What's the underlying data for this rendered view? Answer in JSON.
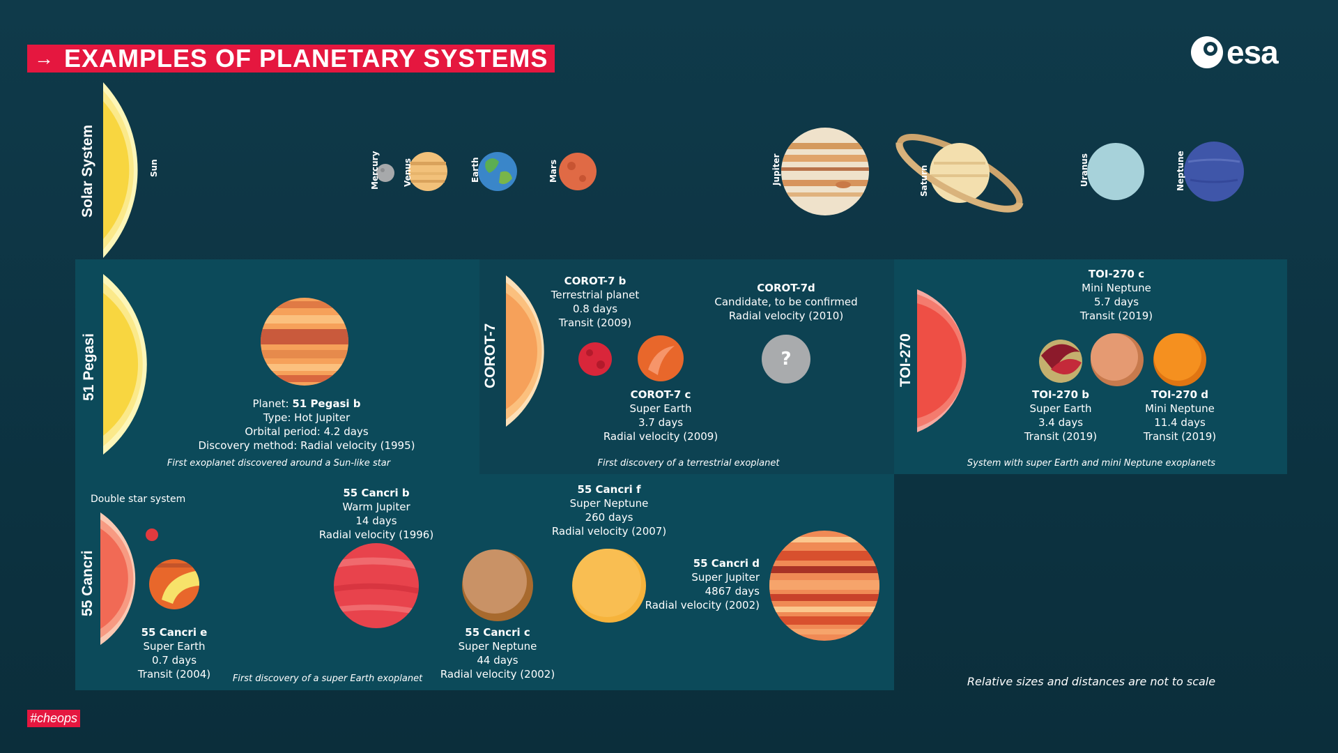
{
  "header": {
    "title": "EXAMPLES OF PLANETARY SYSTEMS",
    "arrow": "→"
  },
  "logo": {
    "text": "esa"
  },
  "solar": {
    "title": "Solar System",
    "labels": {
      "sun": "Sun",
      "mercury": "Mercury",
      "venus": "Venus",
      "earth": "Earth",
      "mars": "Mars",
      "jupiter": "Jupiter",
      "saturn": "Saturn",
      "uranus": "Uranus",
      "neptune": "Neptune"
    }
  },
  "pegasi": {
    "title": "51 Pegasi",
    "planet_label": "Planet: ",
    "planet_name": "51 Pegasi b",
    "type": "Type: Hot Jupiter",
    "period": "Orbital period: 4.2 days",
    "method": "Discovery method: Radial velocity (1995)",
    "caption": "First exoplanet discovered around a Sun-like star"
  },
  "corot": {
    "title": "COROT-7",
    "b": {
      "name": "COROT-7 b",
      "type": "Terrestrial planet",
      "period": "0.8 days",
      "method": "Transit (2009)"
    },
    "c": {
      "name": "COROT-7 c",
      "type": "Super Earth",
      "period": "3.7 days",
      "method": "Radial velocity (2009)"
    },
    "d": {
      "name": "COROT-7d",
      "type": "Candidate, to be confirmed",
      "method": "Radial velocity (2010)",
      "mark": "?"
    },
    "caption": "First discovery of a terrestrial exoplanet"
  },
  "toi": {
    "title": "TOI-270",
    "c": {
      "name": "TOI-270 c",
      "type": "Mini Neptune",
      "period": "5.7 days",
      "method": "Transit (2019)"
    },
    "b": {
      "name": "TOI-270 b",
      "type": "Super Earth",
      "period": "3.4 days",
      "method": "Transit (2019)"
    },
    "d": {
      "name": "TOI-270 d",
      "type": "Mini Neptune",
      "period": "11.4 days",
      "method": "Transit (2019)"
    },
    "caption": "System with super Earth and mini Neptune exoplanets"
  },
  "cancri": {
    "title": "55 Cancri",
    "double": "Double star system",
    "e": {
      "name": "55 Cancri e",
      "type": "Super Earth",
      "period": "0.7 days",
      "method": "Transit (2004)"
    },
    "b": {
      "name": "55 Cancri b",
      "type": "Warm Jupiter",
      "period": "14 days",
      "method": "Radial velocity (1996)"
    },
    "c": {
      "name": "55 Cancri c",
      "type": "Super Neptune",
      "period": "44 days",
      "method": "Radial velocity (2002)"
    },
    "f": {
      "name": "55 Cancri f",
      "type": "Super Neptune",
      "period": "260 days",
      "method": "Radial velocity (2007)"
    },
    "d": {
      "name": "55 Cancri d",
      "type": "Super Jupiter",
      "period": "4867 days",
      "method": "Radial velocity (2002)"
    },
    "caption": "First discovery of a super Earth exoplanet"
  },
  "footer": {
    "note": "Relative sizes and distances are not to scale",
    "tag": "#cheops"
  }
}
